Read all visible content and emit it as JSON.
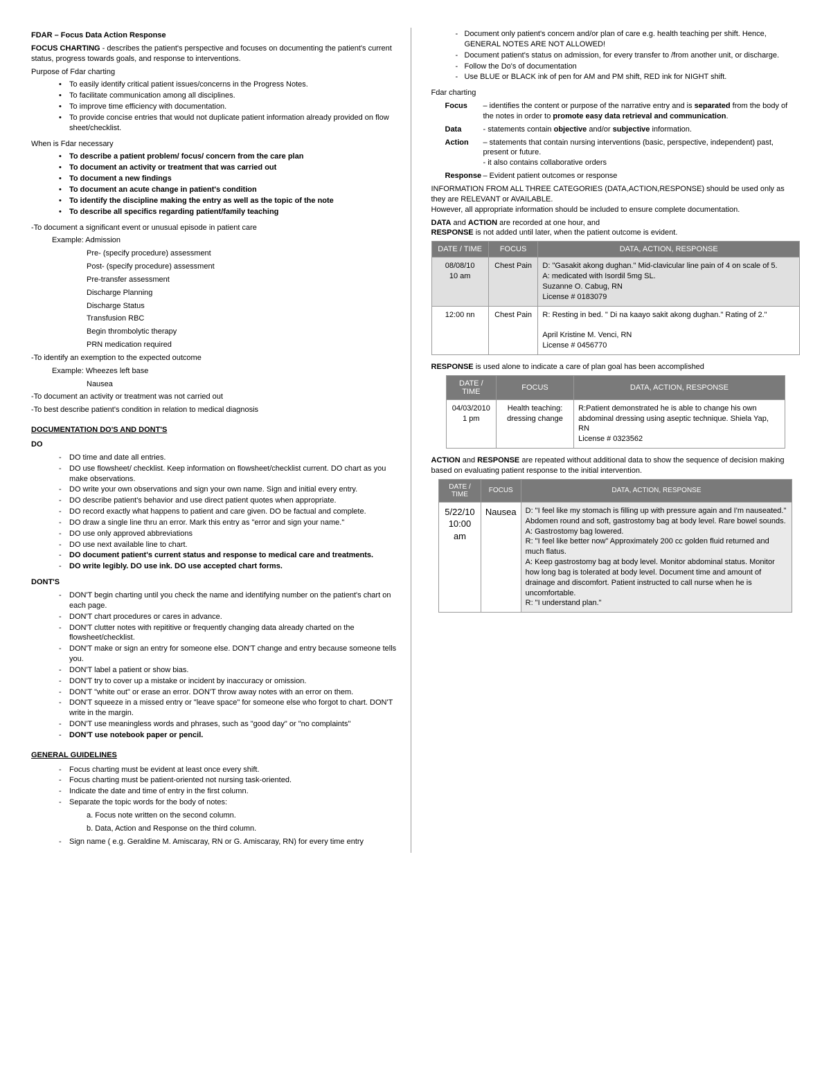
{
  "title": "FDAR – Focus Data Action Response",
  "intro_label": "FOCUS CHARTING",
  "intro_body": " - describes the patient's perspective and focuses on documenting the patient's current status, progress towards goals, and response to interventions.",
  "purpose_h": "Purpose of Fdar charting",
  "purpose": [
    "To easily identify critical patient issues/concerns in the Progress Notes.",
    "To facilitate communication among all disciplines.",
    "To improve time efficiency with documentation.",
    "To provide concise entries that would not duplicate patient information already provided on flow sheet/checklist."
  ],
  "when_h": "When is Fdar necessary",
  "when": [
    "To describe a patient problem/ focus/ concern from the care plan",
    "To document an activity or treatment that was carried out",
    "To document a new findings",
    "To document an acute change in patient's condition",
    "To identify the discipline making the entry as well as the topic of the   note",
    "To describe all specifics regarding patient/family teaching"
  ],
  "sig_event": "-To document a significant event or unusual episode in patient care",
  "ex_adm": "Example: Admission",
  "adm_list": [
    "Pre- (specify procedure) assessment",
    "Post- (specify procedure) assessment",
    "Pre-transfer assessment",
    "Discharge Planning",
    "Discharge Status",
    "Transfusion RBC",
    "Begin thrombolytic therapy",
    "PRN medication required"
  ],
  "exempt": "-To identify an exemption to the expected outcome",
  "ex_wheeze1": "Example: Wheezes left base",
  "ex_wheeze2": "Nausea",
  "not_carried": "-To document an activity or treatment was not carried out",
  "best_desc": "-To best describe patient's condition in relation to medical diagnosis",
  "dos_donts_h": "DOCUMENTATION DO'S AND DONT'S",
  "do_h": "DO",
  "do_list": [
    "DO time and date all entries.",
    "DO use flowsheet/ checklist. Keep information on flowsheet/checklist current. DO chart as you make observations.",
    "DO write your own observations and sign your own name. Sign and initial every entry.",
    "DO describe patient's behavior and use direct patient quotes when appropriate.",
    "DO record exactly what happens to patient and care given. DO be factual and complete.",
    "DO draw a single line thru an error. Mark this entry as \"error and sign your name.\"",
    "DO use only approved abbreviations",
    "DO use next available line to chart."
  ],
  "do_bold1": "DO document patient's current status and response to medical care and treatments.",
  "do_bold2": "DO write legibly. DO use ink. DO use accepted chart forms.",
  "dont_h": "DONT'S",
  "dont_list": [
    "DON'T begin charting until you check the name and identifying number on the patient's chart on each page.",
    "DON'T chart procedures or cares in advance.",
    "DON'T clutter notes with repititive or frequently changing data already charted on the flowsheet/checklist.",
    "DON'T make or sign an entry for someone else. DON'T change and entry because someone tells you.",
    "DON'T label a patient or show bias.",
    "DON'T try to cover up a mistake or incident by inaccuracy or omission.",
    "DON'T \"white out\" or erase an error. DON'T throw away notes with an error on them.",
    "DON'T squeeze in a missed entry or \"leave space\" for someone else who forgot to chart. DON'T write in the margin.",
    "DON'T use meaningless words and phrases, such as \"good day\" or \"no complaints\""
  ],
  "dont_bold": "DON'T use notebook paper or pencil.",
  "gg_h": "GENERAL GUIDELINES",
  "gg_list": [
    "Focus charting must be evident at least once every shift.",
    "Focus charting must be patient-oriented not nursing task-oriented.",
    "Indicate the date and time of entry in the first column.",
    "Separate the topic words for the body of notes:"
  ],
  "gg_sub1": "a. Focus note written on the second column.",
  "gg_sub2": "b. Data, Action and Response on the third column.",
  "gg_sign": "Sign name ( e.g. Geraldine M. Amiscaray, RN or G.  Amiscaray, RN) for every time entry",
  "r_bul": [
    "Document only patient's concern and/or plan of care e.g. health teaching  per shift. Hence, GENERAL  NOTES ARE NOT ALLOWED!",
    "Document patient's status on admission, for every transfer to /from another unit, or discharge.",
    "Follow the Do's of documentation",
    "Use BLUE or BLACK ink of pen for AM and PM shift, RED ink for NIGHT shift."
  ],
  "fdar_h": "Fdar charting",
  "focus_k": "Focus",
  "focus_v": " – identifies the content or purpose of the narrative entry and is <b>separated</b> from the body of the notes in order to <b>promote easy data retrieval and communication</b>.",
  "data_k": "Data",
  "data_v": "  - statements contain <b>objective</b> and/or <b>subjective</b> information.",
  "action_k": "Action",
  "action_v": " – statements that contain nursing interventions (basic, perspective, independent) past, present or future.<br>- it also contains collaborative orders",
  "resp_k": "Response",
  "resp_v": " – Evident patient outcomes or response",
  "info_para": "INFORMATION FROM ALL THREE CATEGORIES (DATA,ACTION,RESPONSE) should be used only as they are RELEVANT or AVAILABLE.<br>However, all appropriate information should be included to ensure complete documentation.",
  "da_note": "<b>DATA</b> and <b>ACTION</b> are recorded at one hour, and<br><b>RESPONSE</b> is not added until later, when the patient outcome is evident.",
  "th1": "DATE / TIME",
  "th2": "FOCUS",
  "th3": "DATA, ACTION, RESPONSE",
  "t1r1c1": "08/08/10\n10 am",
  "t1r1c2": "Chest Pain",
  "t1r1c3": "D: \"Gasakit akong dughan.\" Mid-clavicular line pain of 4 on scale of 5.\nA:   medicated with Isordil 5mg SL.\nSuzanne O. Cabug, RN\nLicense # 0183079",
  "t1r2c1": "12:00 nn",
  "t1r2c2": "Chest Pain",
  "t1r2c3": "R: Resting in bed. \" Di na kaayo sakit akong dughan.\" Rating of 2.\"\n\nApril Kristine M. Venci, RN\nLicense # 0456770",
  "resp_alone": "<b>RESPONSE</b> is used alone to indicate a care of plan goal has been accomplished",
  "t2r1c1": "04/03/2010\n1 pm",
  "t2r1c2": "Health teaching: dressing change",
  "t2r1c3": "R:Patient demonstrated he is able to change his own abdominal dressing using aseptic technique. Shiela Yap, RN\nLicense # 0323562",
  "ar_note": "<b>ACTION</b> and <b>RESPONSE</b> are repeated without additional data to show the sequence of decision making based on evaluating patient response to the initial intervention.",
  "t3r1c1": "5/22/10\n10:00 am",
  "t3r1c2": "Nausea",
  "t3r1c3": "D: \"I feel like my stomach is filling up with pressure again and I'm nauseated.\" Abdomen round and soft, gastrostomy bag at body level. Rare bowel sounds.\nA: Gastrostomy bag lowered.\nR: \"I feel like better now\" Approximately 200 cc golden fluid returned and much flatus.\nA: Keep gastrostomy bag at body level. Monitor abdominal status. Monitor how long bag is tolerated at body level. Document time and amount of drainage and discomfort. Patient instructed to call nurse when he is uncomfortable.\nR: \"I understand plan.\""
}
